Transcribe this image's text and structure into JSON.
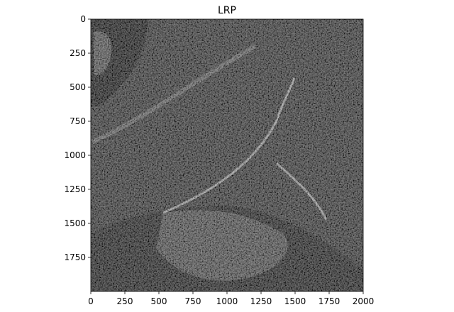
{
  "chart_data": {
    "type": "heatmap",
    "title": "LRP",
    "xlabel": "",
    "ylabel": "",
    "colormap": "gray",
    "xlim": [
      0,
      2000
    ],
    "ylim": [
      2000,
      0
    ],
    "x_ticks": [
      0,
      250,
      500,
      750,
      1000,
      1250,
      1500,
      1750,
      2000
    ],
    "y_ticks": [
      0,
      250,
      500,
      750,
      1000,
      1250,
      1500,
      1750
    ],
    "grid": false,
    "legend": "none"
  }
}
